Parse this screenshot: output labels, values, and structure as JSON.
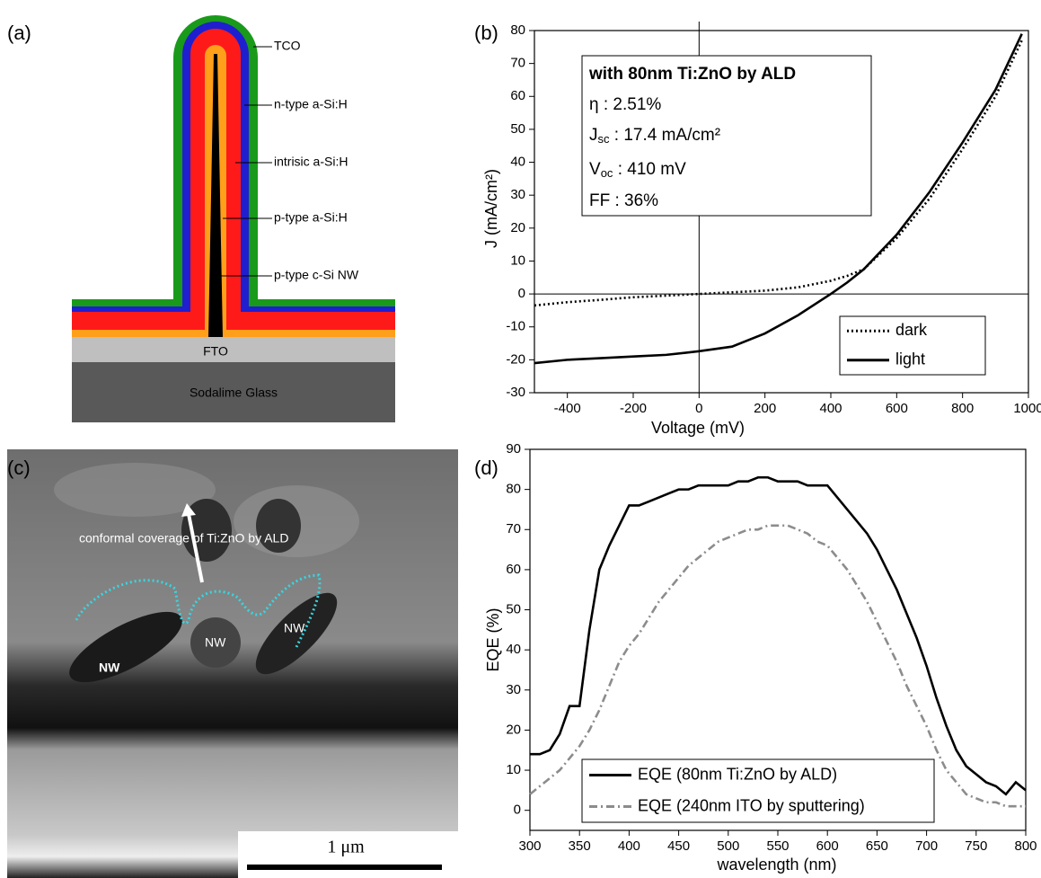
{
  "panel_labels": [
    "(a)",
    "(b)",
    "(c)",
    "(d)"
  ],
  "diagram": {
    "layers": [
      "TCO",
      "n-type a-Si:H",
      "intrisic a-Si:H",
      "p-type a-Si:H",
      "p-type c-Si NW"
    ],
    "substrate": [
      "FTO",
      "Sodalime Glass"
    ]
  },
  "sem": {
    "caption": "conformal coverage of Ti:ZnO by ALD",
    "labels": [
      "NW",
      "NW",
      "NW"
    ],
    "scale_bar": "1 μm"
  },
  "chart_data": [
    {
      "type": "line",
      "x_label": "Voltage (mV)",
      "y_label": "J (mA/cm²)",
      "annotation": {
        "title": "with 80nm Ti:ZnO by ALD",
        "eta": "η : 2.51%",
        "jsc": [
          "J",
          "sc",
          " : 17.4 mA/cm²"
        ],
        "voc": [
          "V",
          "oc",
          " : 410 mV"
        ],
        "ff": "FF : 36%"
      },
      "xlim": [
        -500,
        1000
      ],
      "ylim": [
        -30,
        80
      ],
      "xticks": [
        -400,
        -200,
        0,
        200,
        400,
        600,
        800,
        1000
      ],
      "yticks": [
        -30,
        -20,
        -10,
        0,
        10,
        20,
        30,
        40,
        50,
        60,
        70,
        80
      ],
      "zero_lines": true,
      "legend": "lower right",
      "x": [
        -500,
        -400,
        -300,
        -200,
        -100,
        0,
        100,
        200,
        300,
        400,
        450,
        500,
        600,
        700,
        800,
        900,
        980
      ],
      "series": [
        {
          "name": "dark",
          "color": "#000000",
          "style": "dotted",
          "values": [
            -3.5,
            -2.5,
            -1.8,
            -1,
            -0.5,
            0,
            0.5,
            1,
            2,
            4,
            5.5,
            7.5,
            17,
            29,
            44,
            60,
            77
          ]
        },
        {
          "name": "light",
          "color": "#000000",
          "style": "solid",
          "values": [
            -21,
            -20,
            -19.5,
            -19,
            -18.5,
            -17.4,
            -16,
            -12,
            -6.5,
            0,
            3.5,
            7.5,
            18,
            31,
            46,
            62,
            79
          ]
        }
      ]
    },
    {
      "type": "line",
      "x_label": "wavelength (nm)",
      "y_label": "EQE (%)",
      "xlim": [
        300,
        800
      ],
      "ylim": [
        -5,
        90
      ],
      "xticks": [
        300,
        350,
        400,
        450,
        500,
        550,
        600,
        650,
        700,
        750,
        800
      ],
      "yticks": [
        0,
        10,
        20,
        30,
        40,
        50,
        60,
        70,
        80,
        90
      ],
      "zero_lines": false,
      "legend": "lower left",
      "x": [
        300,
        310,
        320,
        330,
        340,
        350,
        360,
        370,
        380,
        390,
        400,
        410,
        420,
        430,
        440,
        450,
        460,
        470,
        480,
        490,
        500,
        510,
        520,
        530,
        540,
        550,
        560,
        570,
        580,
        590,
        600,
        610,
        620,
        630,
        640,
        650,
        660,
        670,
        680,
        690,
        700,
        710,
        720,
        730,
        740,
        750,
        760,
        770,
        780,
        790,
        800
      ],
      "series": [
        {
          "name": "EQE (80nm Ti:ZnO by ALD)",
          "color": "#000000",
          "style": "solid",
          "values": [
            14,
            14,
            15,
            19,
            26,
            26,
            45,
            60,
            66,
            71,
            76,
            76,
            77,
            78,
            79,
            80,
            80,
            81,
            81,
            81,
            81,
            82,
            82,
            83,
            83,
            82,
            82,
            82,
            81,
            81,
            81,
            78,
            75,
            72,
            69,
            65,
            60,
            55,
            49,
            43,
            36,
            28,
            21,
            15,
            11,
            9,
            7,
            6,
            4,
            7,
            5
          ]
        },
        {
          "name": "EQE (240nm ITO by sputtering)",
          "color": "#8c8c8c",
          "style": "dashdot",
          "values": [
            4,
            6,
            8,
            10,
            13,
            16,
            20,
            25,
            31,
            37,
            41,
            44,
            48,
            52,
            55,
            58,
            61,
            63,
            65,
            67,
            68,
            69,
            70,
            70,
            71,
            71,
            71,
            70,
            69,
            67,
            66,
            63,
            60,
            56,
            52,
            47,
            42,
            37,
            31,
            26,
            21,
            15,
            10,
            7,
            4,
            3,
            2,
            2,
            1,
            1,
            1
          ]
        }
      ]
    }
  ]
}
